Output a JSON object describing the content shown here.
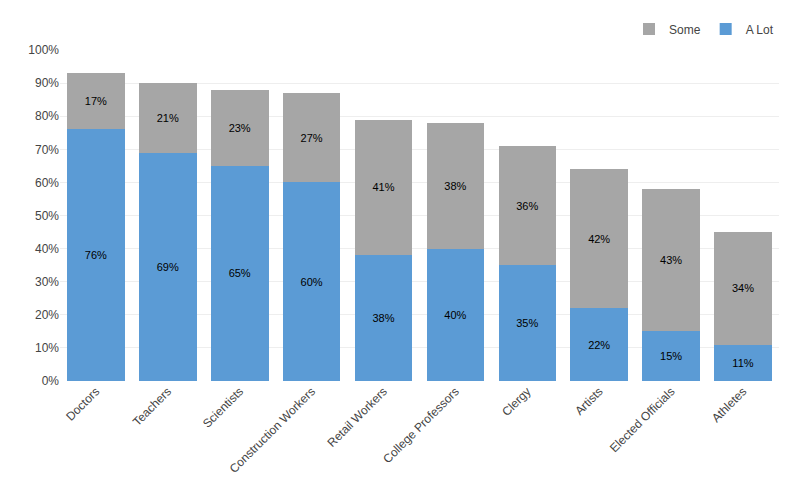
{
  "chart_data": {
    "type": "bar",
    "stacked": true,
    "categories": [
      "Doctors",
      "Teachers",
      "Scientists",
      "Construction Workers",
      "Retail Workers",
      "College Professors",
      "Clergy",
      "Artists",
      "Elected Officials",
      "Athletes"
    ],
    "series": [
      {
        "name": "A Lot",
        "color": "#5b9bd5",
        "values": [
          76,
          69,
          65,
          60,
          38,
          40,
          35,
          22,
          15,
          11
        ],
        "value_labels": [
          "76%",
          "69%",
          "65%",
          "60%",
          "38%",
          "40%",
          "35%",
          "22%",
          "15%",
          "11%"
        ]
      },
      {
        "name": "Some",
        "color": "#a6a6a6",
        "values": [
          17,
          21,
          23,
          27,
          41,
          38,
          36,
          42,
          43,
          34
        ],
        "value_labels": [
          "17%",
          "21%",
          "23%",
          "27%",
          "41%",
          "38%",
          "36%",
          "42%",
          "43%",
          "34%"
        ]
      }
    ],
    "ylim": [
      0,
      100
    ],
    "yticks": [
      {
        "value": 0,
        "label": "0%"
      },
      {
        "value": 10,
        "label": "10%"
      },
      {
        "value": 20,
        "label": "20%"
      },
      {
        "value": 30,
        "label": "30%"
      },
      {
        "value": 40,
        "label": "40%"
      },
      {
        "value": 50,
        "label": "50%"
      },
      {
        "value": 60,
        "label": "60%"
      },
      {
        "value": 70,
        "label": "70%"
      },
      {
        "value": 80,
        "label": "80%"
      },
      {
        "value": 90,
        "label": "90%"
      },
      {
        "value": 100,
        "label": "100%"
      }
    ],
    "grid": true,
    "legend": "upper right",
    "data_labels": true
  }
}
